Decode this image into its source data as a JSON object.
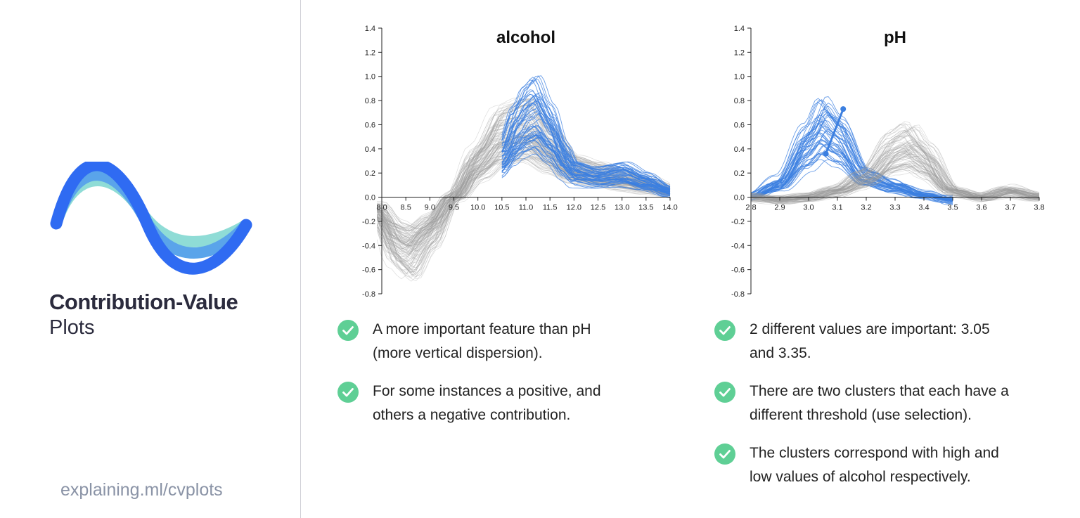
{
  "sidebar": {
    "title": "Contribution-Value",
    "subtitle": "Plots",
    "url": "explaining.ml/cvplots",
    "logo_icon": "wave-logo-icon"
  },
  "colors": {
    "blue": "#3b7fe0",
    "gray": "#9a9a9a",
    "check": "#5fcf95",
    "logo_dark": "#2f6bf2",
    "logo_mid": "#5aa4ea",
    "logo_light": "#8fdcd6"
  },
  "chart_data": [
    {
      "type": "line",
      "title": "alcohol",
      "xlabel": "",
      "ylabel": "",
      "xlim": [
        8.0,
        14.0
      ],
      "ylim": [
        -0.8,
        1.4
      ],
      "x_ticks": [
        8.0,
        8.5,
        9.0,
        9.5,
        10.0,
        10.5,
        11.0,
        11.5,
        12.0,
        12.5,
        13.0,
        13.5,
        14.0
      ],
      "y_ticks": [
        1.4,
        1.2,
        1.0,
        0.8,
        0.6,
        0.4,
        0.2,
        0.0,
        -0.2,
        -0.4,
        -0.6,
        -0.8
      ],
      "grid": false,
      "series": [
        {
          "color": "gray",
          "count": 120,
          "x": [
            7.9,
            8.3,
            8.6,
            9.0,
            9.5,
            10.0,
            10.5,
            11.0,
            11.5,
            12.0,
            12.5,
            13.0,
            13.5,
            14.0
          ],
          "values": [
            -0.12,
            -0.38,
            -0.45,
            -0.28,
            0.0,
            0.28,
            0.5,
            0.55,
            0.38,
            0.22,
            0.18,
            0.14,
            0.1,
            0.05
          ]
        },
        {
          "color": "blue",
          "count": 55,
          "x": [
            10.5,
            10.8,
            11.0,
            11.2,
            11.5,
            11.8,
            12.0,
            12.5,
            13.0,
            13.5,
            14.0
          ],
          "values": [
            0.3,
            0.5,
            0.6,
            0.65,
            0.5,
            0.3,
            0.2,
            0.16,
            0.18,
            0.12,
            0.05
          ]
        }
      ]
    },
    {
      "type": "line",
      "title": "pH",
      "xlabel": "",
      "ylabel": "",
      "xlim": [
        2.8,
        3.8
      ],
      "ylim": [
        -0.8,
        1.4
      ],
      "x_ticks": [
        2.8,
        2.9,
        3.0,
        3.1,
        3.2,
        3.3,
        3.4,
        3.5,
        3.6,
        3.7,
        3.8
      ],
      "y_ticks": [
        1.4,
        1.2,
        1.0,
        0.8,
        0.6,
        0.4,
        0.2,
        0.0,
        -0.2,
        -0.4,
        -0.6,
        -0.8
      ],
      "grid": false,
      "series": [
        {
          "color": "blue",
          "count": 45,
          "x": [
            2.8,
            2.9,
            3.0,
            3.05,
            3.1,
            3.2,
            3.3,
            3.4,
            3.5
          ],
          "values": [
            0.0,
            0.1,
            0.4,
            0.55,
            0.45,
            0.15,
            0.08,
            0.02,
            -0.02
          ]
        },
        {
          "color": "gray",
          "count": 90,
          "x": [
            2.8,
            2.9,
            3.0,
            3.1,
            3.2,
            3.3,
            3.35,
            3.4,
            3.5,
            3.6,
            3.7,
            3.8
          ],
          "values": [
            0.0,
            -0.02,
            0.0,
            0.05,
            0.15,
            0.35,
            0.4,
            0.3,
            0.05,
            0.0,
            0.05,
            0.0
          ]
        }
      ],
      "selection_line": {
        "x": [
          3.06,
          3.12
        ],
        "y": [
          0.36,
          0.73
        ]
      }
    }
  ],
  "notes": {
    "alcohol": [
      {
        "line1": "A more important feature than pH",
        "line2": "(more vertical dispersion)."
      },
      {
        "line1": "For some instances a positive, and",
        "line2": "others a negative contribution."
      }
    ],
    "ph": [
      {
        "line1": "2 different values are important: 3.05",
        "line2": "and 3.35."
      },
      {
        "line1": "There are two clusters that each have a",
        "line2": "different threshold (use selection)."
      },
      {
        "line1": "The clusters correspond with high and",
        "line2": "low values of alcohol respectively."
      }
    ]
  }
}
